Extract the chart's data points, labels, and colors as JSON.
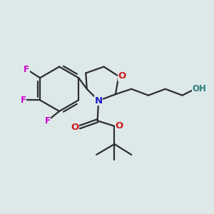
{
  "bg_color": "#dde8e8",
  "bond_color": "#2d2d2d",
  "N_color": "#1a1acc",
  "O_color": "#cc1a1a",
  "F_color": "#cc00cc",
  "OH_color": "#2a8080",
  "line_width": 1.6,
  "font_size": 8.5,
  "fig_size": [
    3.0,
    3.0
  ],
  "dpi": 100,
  "xlim": [
    0,
    10
  ],
  "ylim": [
    0,
    10
  ]
}
